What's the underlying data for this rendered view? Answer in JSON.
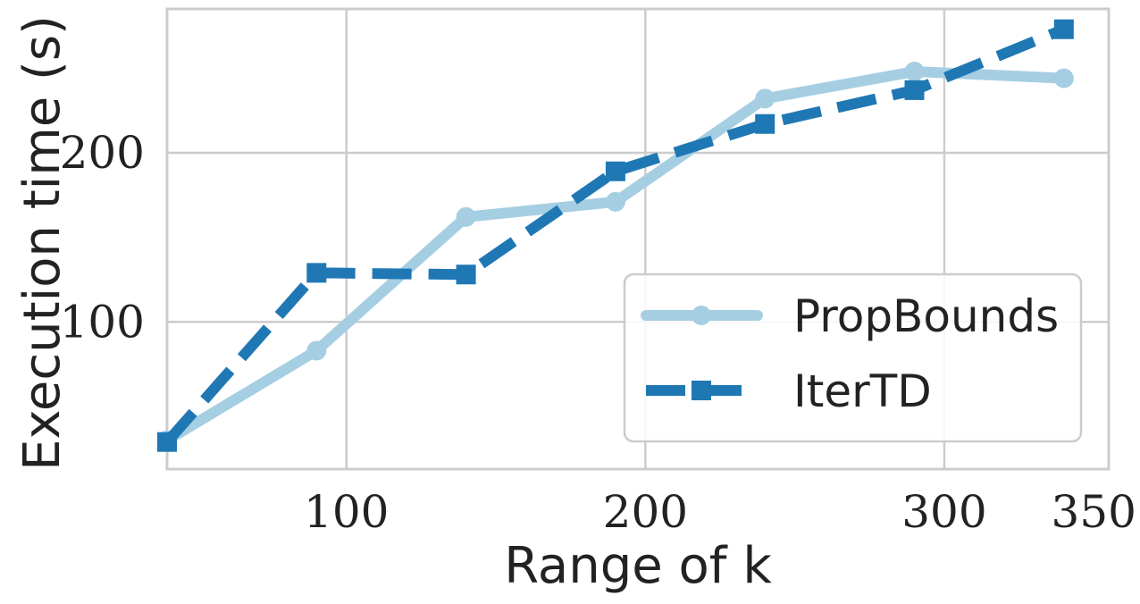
{
  "chart_data": {
    "type": "line",
    "xlabel": "Range of k",
    "ylabel": "Execution time (s)",
    "xlim": [
      40,
      355
    ],
    "ylim": [
      13,
      285
    ],
    "xticks": [
      100,
      200,
      300,
      350
    ],
    "yticks": [
      100,
      200
    ],
    "grid": true,
    "legend_position": "lower-right",
    "series": [
      {
        "name": "PropBounds",
        "color": "#a6cee3",
        "marker": "circle",
        "line_style": "solid",
        "x": [
          40,
          90,
          140,
          190,
          240,
          290,
          340
        ],
        "y": [
          30,
          83,
          162,
          171,
          232,
          248,
          244
        ]
      },
      {
        "name": "IterTD",
        "color": "#1f78b4",
        "marker": "square",
        "line_style": "dashed",
        "x": [
          40,
          90,
          140,
          190,
          240,
          290,
          340
        ],
        "y": [
          29,
          129,
          128,
          189,
          217,
          237,
          273
        ]
      }
    ]
  }
}
